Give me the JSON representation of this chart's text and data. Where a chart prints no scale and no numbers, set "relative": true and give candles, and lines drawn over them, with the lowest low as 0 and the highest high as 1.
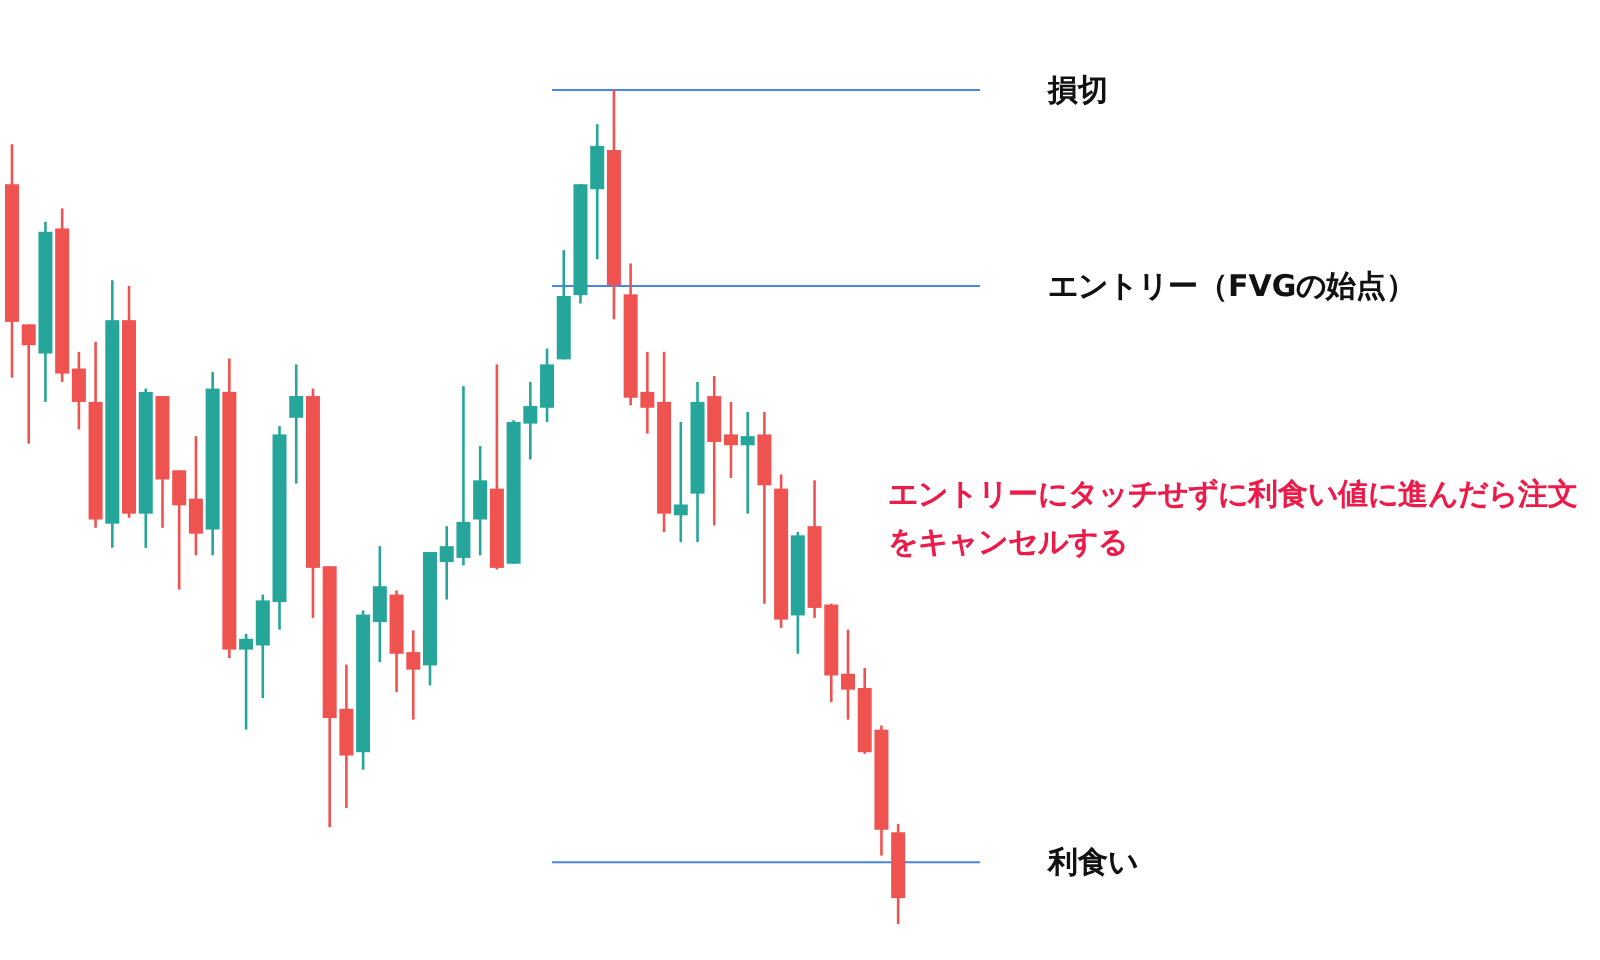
{
  "chart_data": {
    "type": "candlestick",
    "relative": true,
    "categories": [
      null,
      null,
      null,
      null,
      null,
      null,
      null,
      null,
      null,
      null,
      null,
      null,
      null,
      null,
      null,
      null,
      null,
      null,
      null,
      null,
      null,
      null,
      null,
      null,
      null,
      null,
      null,
      null,
      null,
      null,
      null,
      null,
      null,
      null,
      null,
      null,
      null,
      null,
      null,
      null,
      null,
      null,
      null,
      null,
      null,
      null,
      null,
      null,
      null,
      null,
      null,
      null,
      null,
      null
    ],
    "ohlc": [
      [
        0.887,
        0.935,
        0.655,
        0.722
      ],
      [
        0.719,
        0.719,
        0.576,
        0.694
      ],
      [
        0.684,
        0.842,
        0.626,
        0.83
      ],
      [
        0.834,
        0.858,
        0.65,
        0.66
      ],
      [
        0.666,
        0.686,
        0.593,
        0.626
      ],
      [
        0.626,
        0.698,
        0.475,
        0.485
      ],
      [
        0.48,
        0.772,
        0.451,
        0.724
      ],
      [
        0.724,
        0.765,
        0.487,
        0.492
      ],
      [
        0.492,
        0.642,
        0.451,
        0.638
      ],
      [
        0.633,
        0.633,
        0.475,
        0.533
      ],
      [
        0.544,
        0.544,
        0.401,
        0.502
      ],
      [
        0.51,
        0.585,
        0.442,
        0.468
      ],
      [
        0.473,
        0.662,
        0.442,
        0.642
      ],
      [
        0.638,
        0.678,
        0.319,
        0.329
      ],
      [
        0.329,
        0.348,
        0.233,
        0.342
      ],
      [
        0.334,
        0.395,
        0.271,
        0.388
      ],
      [
        0.386,
        0.597,
        0.353,
        0.587
      ],
      [
        0.607,
        0.671,
        0.528,
        0.633
      ],
      [
        0.633,
        0.642,
        0.367,
        0.427
      ],
      [
        0.429,
        0.429,
        0.116,
        0.247
      ],
      [
        0.258,
        0.311,
        0.139,
        0.202
      ],
      [
        0.206,
        0.376,
        0.185,
        0.371
      ],
      [
        0.362,
        0.453,
        0.314,
        0.405
      ],
      [
        0.395,
        0.4,
        0.278,
        0.324
      ],
      [
        0.326,
        0.352,
        0.245,
        0.305
      ],
      [
        0.31,
        0.446,
        0.286,
        0.446
      ],
      [
        0.434,
        0.477,
        0.389,
        0.453
      ],
      [
        0.439,
        0.645,
        0.43,
        0.482
      ],
      [
        0.485,
        0.573,
        0.442,
        0.532
      ],
      [
        0.522,
        0.671,
        0.425,
        0.427
      ],
      [
        0.432,
        0.604,
        0.432,
        0.602
      ],
      [
        0.6,
        0.65,
        0.557,
        0.621
      ],
      [
        0.619,
        0.69,
        0.602,
        0.671
      ],
      [
        0.677,
        0.808,
        0.677,
        0.753
      ],
      [
        0.754,
        0.887,
        0.744,
        0.887
      ],
      [
        0.881,
        0.959,
        0.797,
        0.933
      ],
      [
        0.928,
        1,
        0.725,
        0.766
      ],
      [
        0.755,
        0.792,
        0.622,
        0.631
      ],
      [
        0.638,
        0.686,
        0.588,
        0.619
      ],
      [
        0.626,
        0.686,
        0.47,
        0.492
      ],
      [
        0.49,
        0.602,
        0.458,
        0.503
      ],
      [
        0.516,
        0.65,
        0.458,
        0.626
      ],
      [
        0.633,
        0.657,
        0.478,
        0.578
      ],
      [
        0.587,
        0.626,
        0.535,
        0.574
      ],
      [
        0.574,
        0.614,
        0.492,
        0.585
      ],
      [
        0.587,
        0.614,
        0.384,
        0.526
      ],
      [
        0.522,
        0.539,
        0.355,
        0.365
      ],
      [
        0.37,
        0.47,
        0.324,
        0.466
      ],
      [
        0.477,
        0.532,
        0.367,
        0.379
      ],
      [
        0.383,
        0.384,
        0.266,
        0.298
      ],
      [
        0.3,
        0.353,
        0.245,
        0.281
      ],
      [
        0.283,
        0.307,
        0.204,
        0.206
      ],
      [
        0.233,
        0.238,
        0.082,
        0.113
      ],
      [
        0.11,
        0.12,
        0,
        0.031
      ]
    ],
    "ref_lines": [
      {
        "axis": "y",
        "value": 1,
        "label": "損切",
        "color": "#4a86e8"
      },
      {
        "axis": "y",
        "value": 0.765,
        "label": "エントリー（FVGの始点）",
        "color": "#4a86e8"
      },
      {
        "axis": "y",
        "value": 0.074,
        "label": "利食い",
        "color": "#4a86e8"
      }
    ],
    "annotations": [
      "エントリーにタッチせずに利食い値に進んだら注文をキャンセルする"
    ]
  }
}
